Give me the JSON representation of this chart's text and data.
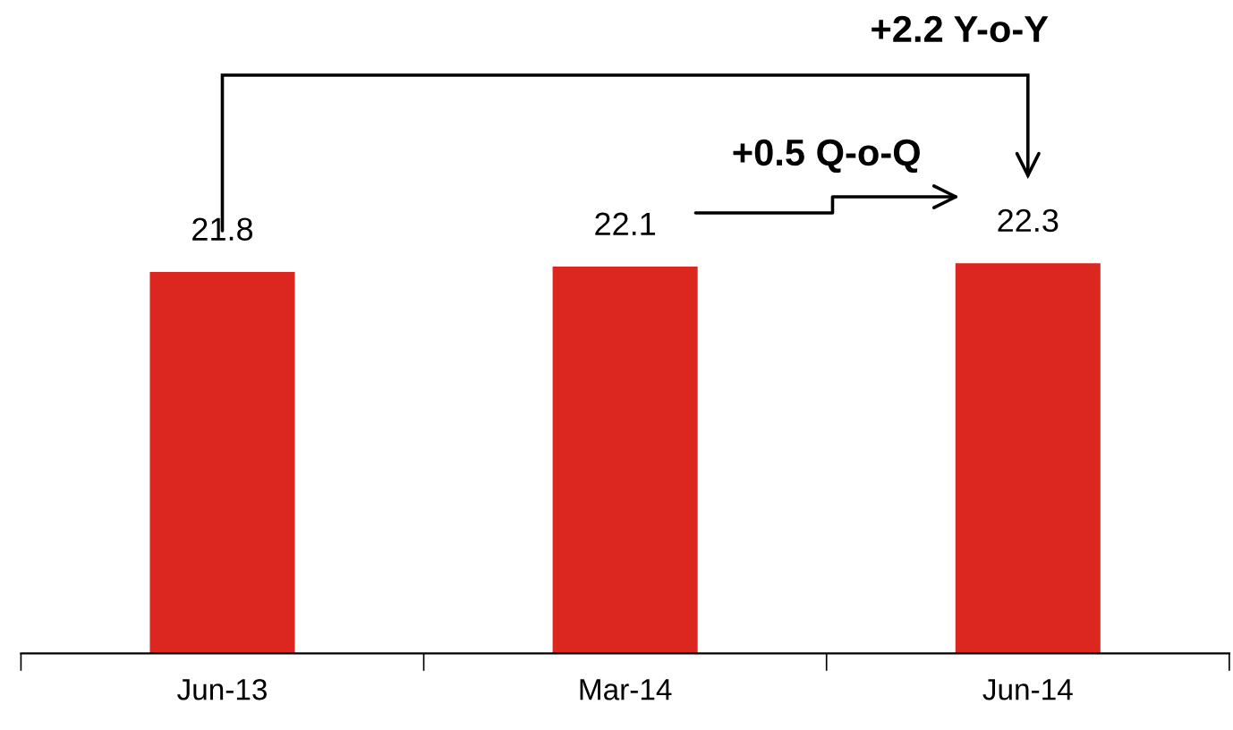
{
  "chart_data": {
    "type": "bar",
    "categories": [
      "Jun-13",
      "Mar-14",
      "Jun-14"
    ],
    "values": [
      21.8,
      22.1,
      22.3
    ],
    "color": "#dc2620",
    "data_labels": true,
    "grid": false,
    "legend": false,
    "annotations": [
      "+2.2 Y-o-Y",
      "+0.5 Q-o-Q"
    ]
  }
}
